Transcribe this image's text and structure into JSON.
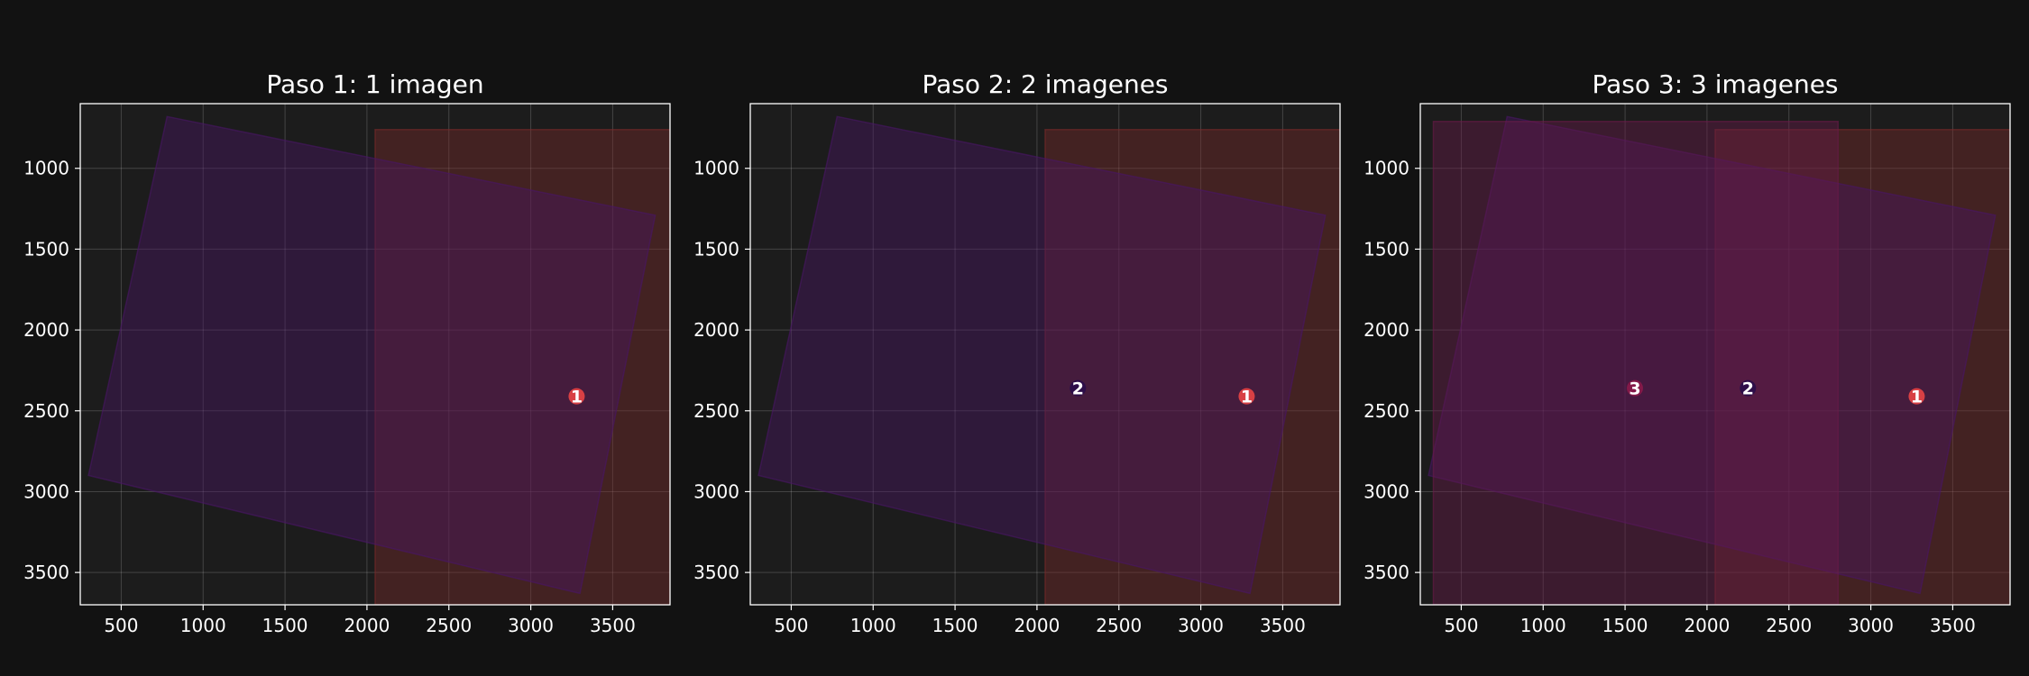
{
  "figure": {
    "background": "#121212",
    "axes_background": "#1c1c1c",
    "frame_color": "#ffffff",
    "grid_color": "#ffffff"
  },
  "chart_data": [
    {
      "type": "scatter",
      "title": "Paso 1: 1 imagen",
      "xlabel": "",
      "ylabel": "",
      "xlim": [
        250,
        3850
      ],
      "ylim": [
        3700,
        600
      ],
      "y_inverted": true,
      "grid": true,
      "xticks": [
        500,
        1000,
        1500,
        2000,
        2500,
        3000,
        3500
      ],
      "yticks": [
        1000,
        1500,
        2000,
        2500,
        3000,
        3500
      ],
      "regions": [
        {
          "id": 1,
          "corners": [
            [
              2050,
              760
            ],
            [
              3900,
              760
            ],
            [
              3900,
              3700
            ],
            [
              2050,
              3700
            ]
          ],
          "color": "#7a2a2a"
        },
        {
          "id": 2,
          "corners": [
            [
              780,
              680
            ],
            [
              3760,
              1290
            ],
            [
              3300,
              3630
            ],
            [
              300,
              2900
            ]
          ],
          "color": "#4a1665"
        }
      ],
      "markers": [
        {
          "label": "1",
          "x": 3280,
          "y": 2410,
          "color": "#e84545"
        }
      ]
    },
    {
      "type": "scatter",
      "title": "Paso 2: 2 imagenes",
      "xlabel": "",
      "ylabel": "",
      "xlim": [
        250,
        3850
      ],
      "ylim": [
        3700,
        600
      ],
      "y_inverted": true,
      "grid": true,
      "xticks": [
        500,
        1000,
        1500,
        2000,
        2500,
        3000,
        3500
      ],
      "yticks": [
        1000,
        1500,
        2000,
        2500,
        3000,
        3500
      ],
      "regions": [
        {
          "id": 1,
          "corners": [
            [
              2050,
              760
            ],
            [
              3900,
              760
            ],
            [
              3900,
              3700
            ],
            [
              2050,
              3700
            ]
          ],
          "color": "#7a2a2a"
        },
        {
          "id": 2,
          "corners": [
            [
              780,
              680
            ],
            [
              3760,
              1290
            ],
            [
              3300,
              3630
            ],
            [
              300,
              2900
            ]
          ],
          "color": "#4a1665"
        }
      ],
      "markers": [
        {
          "label": "2",
          "x": 2250,
          "y": 2360,
          "color": "#2a0d4a"
        },
        {
          "label": "1",
          "x": 3280,
          "y": 2410,
          "color": "#e84545"
        }
      ]
    },
    {
      "type": "scatter",
      "title": "Paso 3: 3 imagenes",
      "xlabel": "",
      "ylabel": "",
      "xlim": [
        250,
        3850
      ],
      "ylim": [
        3700,
        600
      ],
      "y_inverted": true,
      "grid": true,
      "xticks": [
        500,
        1000,
        1500,
        2000,
        2500,
        3000,
        3500
      ],
      "yticks": [
        1000,
        1500,
        2000,
        2500,
        3000,
        3500
      ],
      "regions": [
        {
          "id": 1,
          "corners": [
            [
              2050,
              760
            ],
            [
              3900,
              760
            ],
            [
              3900,
              3700
            ],
            [
              2050,
              3700
            ]
          ],
          "color": "#7a2a2a"
        },
        {
          "id": 2,
          "corners": [
            [
              780,
              680
            ],
            [
              3760,
              1290
            ],
            [
              3300,
              3630
            ],
            [
              300,
              2900
            ]
          ],
          "color": "#4a1665"
        },
        {
          "id": 3,
          "corners": [
            [
              330,
              710
            ],
            [
              2800,
              710
            ],
            [
              2800,
              3700
            ],
            [
              330,
              3700
            ]
          ],
          "color": "#6a1a4a"
        }
      ],
      "markers": [
        {
          "label": "3",
          "x": 1560,
          "y": 2360,
          "color": "#8a1a4a"
        },
        {
          "label": "2",
          "x": 2250,
          "y": 2360,
          "color": "#2a0d4a"
        },
        {
          "label": "1",
          "x": 3280,
          "y": 2410,
          "color": "#e84545"
        }
      ]
    }
  ]
}
